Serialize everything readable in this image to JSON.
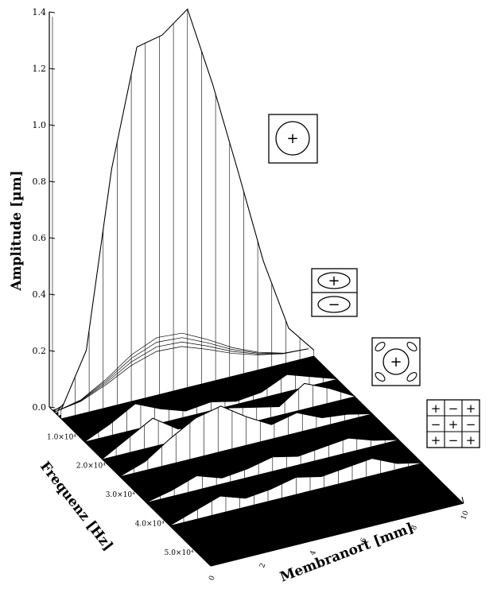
{
  "chart_data": {
    "type": "surface-3d",
    "title": "",
    "ylabel": "Amplitude [µm]",
    "freq_label": "Frequenz [Hz]",
    "xlabel": "Membranort [mm]",
    "z_ticks": [
      "0.0",
      "0.2",
      "0.4",
      "0.6",
      "0.8",
      "1.0",
      "1.2",
      "1.4"
    ],
    "zlim": [
      0,
      1.4
    ],
    "freq_ticks": [
      {
        "value": 10000,
        "label": "1.0×10⁴"
      },
      {
        "value": 20000,
        "label": "2.0×10⁴"
      },
      {
        "value": 30000,
        "label": "3.0×10⁴"
      },
      {
        "value": 40000,
        "label": "4.0×10⁴"
      },
      {
        "value": 50000,
        "label": "5.0×10⁴"
      }
    ],
    "position_ticks": [
      "0",
      "2",
      "4",
      "6",
      "8",
      "10"
    ],
    "position_range": [
      0,
      10
    ],
    "series": [
      {
        "freq": 2000,
        "x": [
          0,
          1,
          2,
          3,
          4,
          5,
          6,
          7,
          8,
          9,
          10
        ],
        "amplitude": [
          0.01,
          0.04,
          0.12,
          0.22,
          0.28,
          0.27,
          0.2,
          0.12,
          0.06,
          0.02,
          0.01
        ]
      },
      {
        "freq": 3000,
        "x": [
          0,
          1,
          2,
          3,
          4,
          5,
          6,
          7,
          8,
          9,
          10
        ],
        "amplitude": [
          0.02,
          0.1,
          0.38,
          0.62,
          0.7,
          0.68,
          0.52,
          0.33,
          0.16,
          0.06,
          0.01
        ]
      },
      {
        "freq": 4000,
        "x": [
          0,
          1,
          2,
          3,
          4,
          5,
          6,
          7,
          8,
          9,
          10
        ],
        "amplitude": [
          0.03,
          0.22,
          0.84,
          1.25,
          1.27,
          1.34,
          1.05,
          0.72,
          0.38,
          0.12,
          0.02
        ]
      },
      {
        "freq": 12000,
        "x": [
          0,
          1,
          2,
          3,
          4,
          5,
          6,
          7,
          8,
          9,
          10
        ],
        "amplitude": [
          0.0,
          0.04,
          0.09,
          0.05,
          0.02,
          0.03,
          0.01,
          0.02,
          0.06,
          0.03,
          0.0
        ]
      },
      {
        "freq": 18000,
        "x": [
          0,
          1,
          2,
          3,
          4,
          5,
          6,
          7,
          8,
          9,
          10
        ],
        "amplitude": [
          0.0,
          0.05,
          0.1,
          0.04,
          0.03,
          0.07,
          0.05,
          0.03,
          0.09,
          0.05,
          0.0
        ]
      },
      {
        "freq": 24000,
        "x": [
          0,
          1,
          2,
          3,
          4,
          5,
          6,
          7,
          8,
          9,
          10
        ],
        "amplitude": [
          0.0,
          0.03,
          0.09,
          0.14,
          0.16,
          0.1,
          0.05,
          0.07,
          0.03,
          0.02,
          0.0
        ]
      },
      {
        "freq": 33000,
        "x": [
          0,
          1,
          2,
          3,
          4,
          5,
          6,
          7,
          8,
          9,
          10
        ],
        "amplitude": [
          0.0,
          0.02,
          0.05,
          0.02,
          0.03,
          0.05,
          0.03,
          0.04,
          0.05,
          0.02,
          0.0
        ]
      },
      {
        "freq": 41000,
        "x": [
          0,
          1,
          2,
          3,
          4,
          5,
          6,
          7,
          8,
          9,
          10
        ],
        "amplitude": [
          0.0,
          0.03,
          0.06,
          0.03,
          0.04,
          0.06,
          0.04,
          0.05,
          0.06,
          0.02,
          0.0
        ]
      }
    ],
    "grid": false
  },
  "mode_icons": [
    {
      "name": "mode-single",
      "symbols": [
        "+"
      ]
    },
    {
      "name": "mode-double",
      "symbols": [
        "+",
        "−"
      ]
    },
    {
      "name": "mode-circle-lobes",
      "symbols": [
        "+"
      ]
    },
    {
      "name": "mode-grid",
      "symbols": [
        "+",
        "−",
        "+",
        "−",
        "+",
        "−",
        "+",
        "−",
        "+"
      ]
    }
  ]
}
